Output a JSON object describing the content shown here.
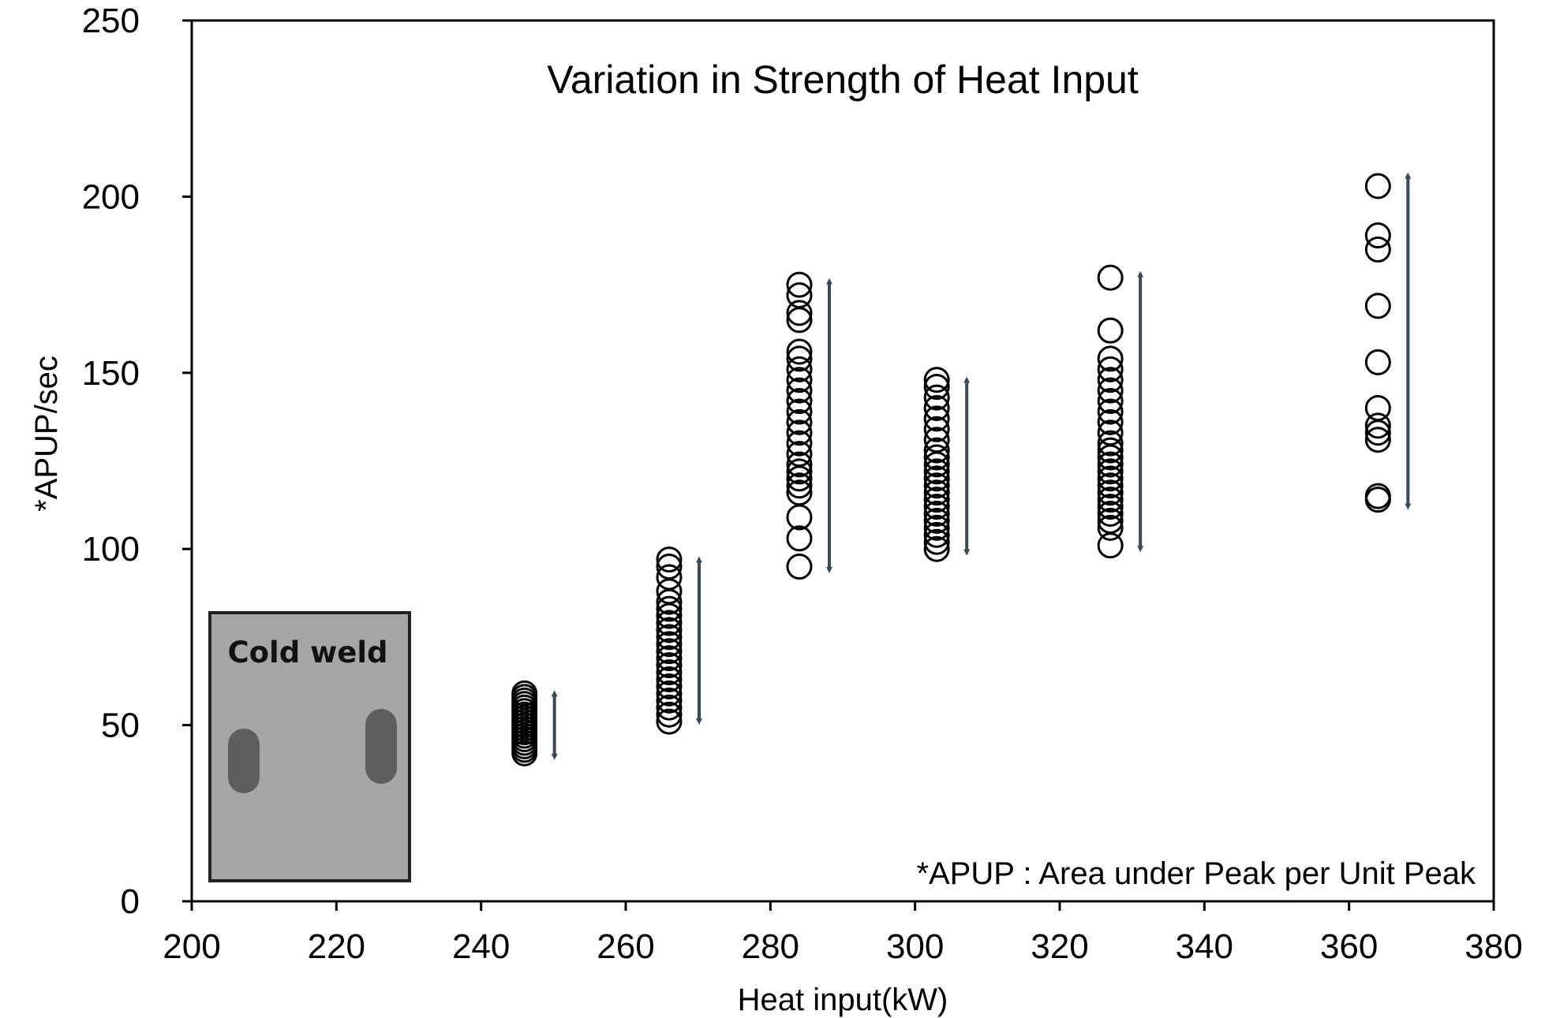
{
  "chart_data": {
    "type": "scatter",
    "title": "Variation in Strength of Heat Input",
    "xlabel": "Heat input(kW)",
    "ylabel": "*APUP/sec",
    "xlim": [
      200,
      380
    ],
    "ylim": [
      0,
      250
    ],
    "xticks": [
      200,
      220,
      240,
      260,
      280,
      300,
      320,
      340,
      360,
      380
    ],
    "yticks": [
      0,
      50,
      100,
      150,
      200,
      250
    ],
    "grid": false,
    "legend": "none",
    "marker_style": "open circle",
    "annotation": "*APUP : Area under Peak per Unit Peak",
    "inset_label": "Cold weld",
    "groups": [
      {
        "x": 246,
        "y": [
          42,
          43,
          44,
          45,
          46,
          47,
          48,
          49,
          50,
          51,
          52,
          53,
          54,
          55,
          56,
          57,
          58,
          59
        ],
        "range": [
          41,
          59
        ]
      },
      {
        "x": 266,
        "y": [
          51,
          53,
          55,
          57,
          59,
          61,
          63,
          65,
          67,
          69,
          71,
          73,
          75,
          77,
          79,
          81,
          83,
          85,
          88,
          92,
          95,
          97
        ],
        "range": [
          51,
          97
        ]
      },
      {
        "x": 284,
        "y": [
          95,
          103,
          109,
          116,
          118,
          120,
          122,
          124,
          127,
          130,
          133,
          136,
          139,
          142,
          145,
          148,
          151,
          154,
          156,
          165,
          167,
          172,
          175
        ],
        "range": [
          94,
          176
        ]
      },
      {
        "x": 303,
        "y": [
          100,
          102,
          104,
          106,
          108,
          110,
          112,
          114,
          116,
          118,
          120,
          122,
          124,
          126,
          128,
          131,
          134,
          137,
          140,
          143,
          146,
          148
        ],
        "range": [
          99,
          148
        ]
      },
      {
        "x": 327,
        "y": [
          101,
          106,
          108,
          110,
          112,
          114,
          116,
          118,
          120,
          122,
          124,
          126,
          128,
          130,
          133,
          136,
          139,
          142,
          145,
          148,
          151,
          154,
          162,
          177
        ],
        "range": [
          100,
          178
        ]
      },
      {
        "x": 364,
        "y": [
          114,
          115,
          131,
          133,
          135,
          140,
          153,
          169,
          185,
          189,
          203
        ],
        "range": [
          112,
          206
        ]
      }
    ],
    "colors": {
      "marker_stroke": "#000000",
      "arrow": "#3a4a54",
      "inset_fill": "#a6a6a6",
      "inset_border": "#222222",
      "inset_spots": "#5e5e5e"
    }
  }
}
